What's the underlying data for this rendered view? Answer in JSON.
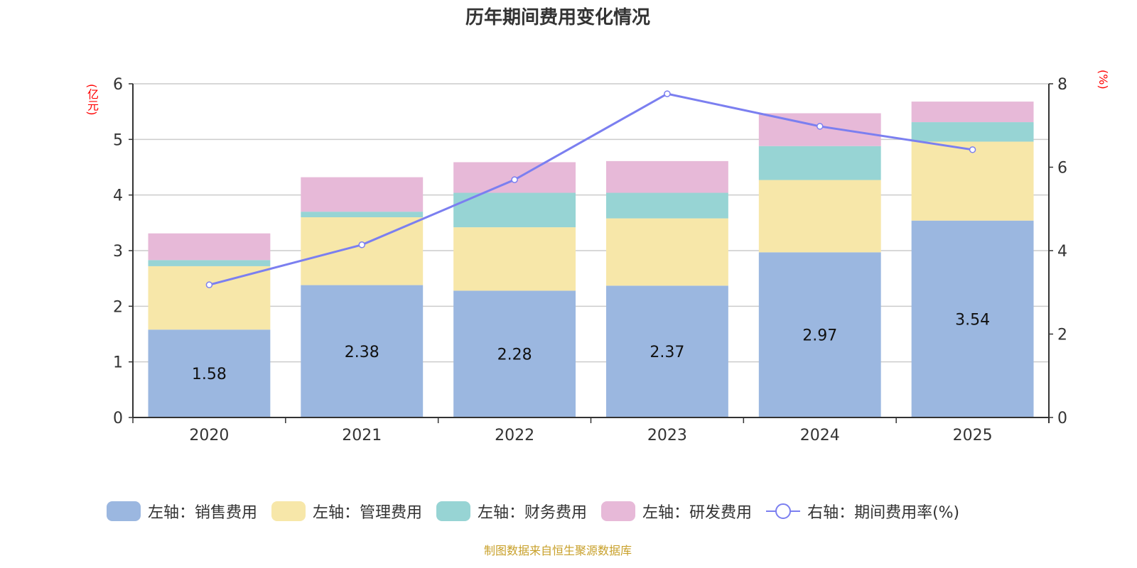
{
  "chart_data": {
    "type": "bar",
    "title": "历年期间费用变化情况",
    "categories": [
      "2020",
      "2021",
      "2022",
      "2023",
      "2024",
      "2025"
    ],
    "stacked": true,
    "series": [
      {
        "name": "左轴：销售费用",
        "axis": "left",
        "color": "#9bb7e0",
        "values": [
          1.58,
          2.38,
          2.28,
          2.37,
          2.97,
          3.54
        ],
        "show_labels": true
      },
      {
        "name": "左轴：管理费用",
        "axis": "left",
        "color": "#f7e7a9",
        "values": [
          1.14,
          1.22,
          1.14,
          1.21,
          1.3,
          1.42
        ]
      },
      {
        "name": "左轴：财务费用",
        "axis": "left",
        "color": "#97d4d4",
        "values": [
          0.11,
          0.1,
          0.62,
          0.46,
          0.61,
          0.35
        ]
      },
      {
        "name": "左轴：研发费用",
        "axis": "left",
        "color": "#e7b9d8",
        "values": [
          0.48,
          0.62,
          0.55,
          0.57,
          0.59,
          0.37
        ]
      },
      {
        "name": "右轴：期间费用率(%)",
        "axis": "right",
        "type": "line",
        "color": "#7b7ff0",
        "values": [
          3.18,
          4.14,
          5.7,
          7.76,
          6.98,
          6.42
        ]
      }
    ],
    "left_axis": {
      "label": "(亿元)",
      "ylim": [
        0,
        6
      ],
      "ticks": [
        "0",
        "1",
        "2",
        "3",
        "4",
        "5",
        "6"
      ]
    },
    "right_axis": {
      "label": "(%)",
      "ylim": [
        0,
        8
      ],
      "ticks": [
        "0",
        "2",
        "4",
        "6",
        "8"
      ]
    },
    "grid": true,
    "legend_position": "bottom"
  },
  "source": "制图数据来自恒生聚源数据库"
}
